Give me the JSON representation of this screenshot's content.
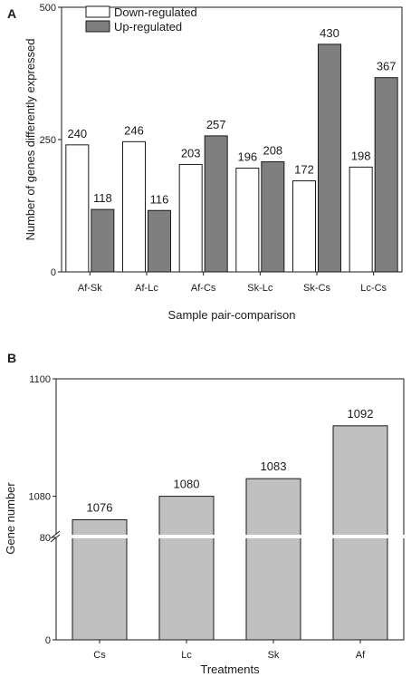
{
  "chart_data": [
    {
      "panel": "A",
      "type": "bar",
      "xlabel": "Sample pair-comparison",
      "ylabel": "Number of genes differently expressed",
      "ylim": [
        0,
        500
      ],
      "yticks": [
        0,
        250,
        500
      ],
      "categories": [
        "Af-Sk",
        "Af-Lc",
        "Af-Cs",
        "Sk-Lc",
        "Sk-Cs",
        "Lc-Cs"
      ],
      "series": [
        {
          "name": "Down-regulated",
          "values": [
            240,
            246,
            203,
            196,
            172,
            198
          ],
          "color": "#ffffff"
        },
        {
          "name": "Up-regulated",
          "values": [
            118,
            116,
            257,
            208,
            430,
            367
          ],
          "color": "#7f7f7f"
        }
      ],
      "legend": "top-left",
      "grid": false
    },
    {
      "panel": "B",
      "type": "bar",
      "xlabel": "Treatments",
      "ylabel": "Gene number",
      "axis_break": true,
      "lower_segment": {
        "ylim": [
          0,
          80
        ],
        "yticks": [
          0,
          80
        ]
      },
      "upper_segment": {
        "ylim": [
          1073.3,
          1100
        ],
        "yticks": [
          1080,
          1100
        ]
      },
      "categories": [
        "Cs",
        "Lc",
        "Sk",
        "Af"
      ],
      "values": [
        1076,
        1080,
        1083,
        1092
      ],
      "color": "#c0c0c0",
      "grid": false
    }
  ]
}
